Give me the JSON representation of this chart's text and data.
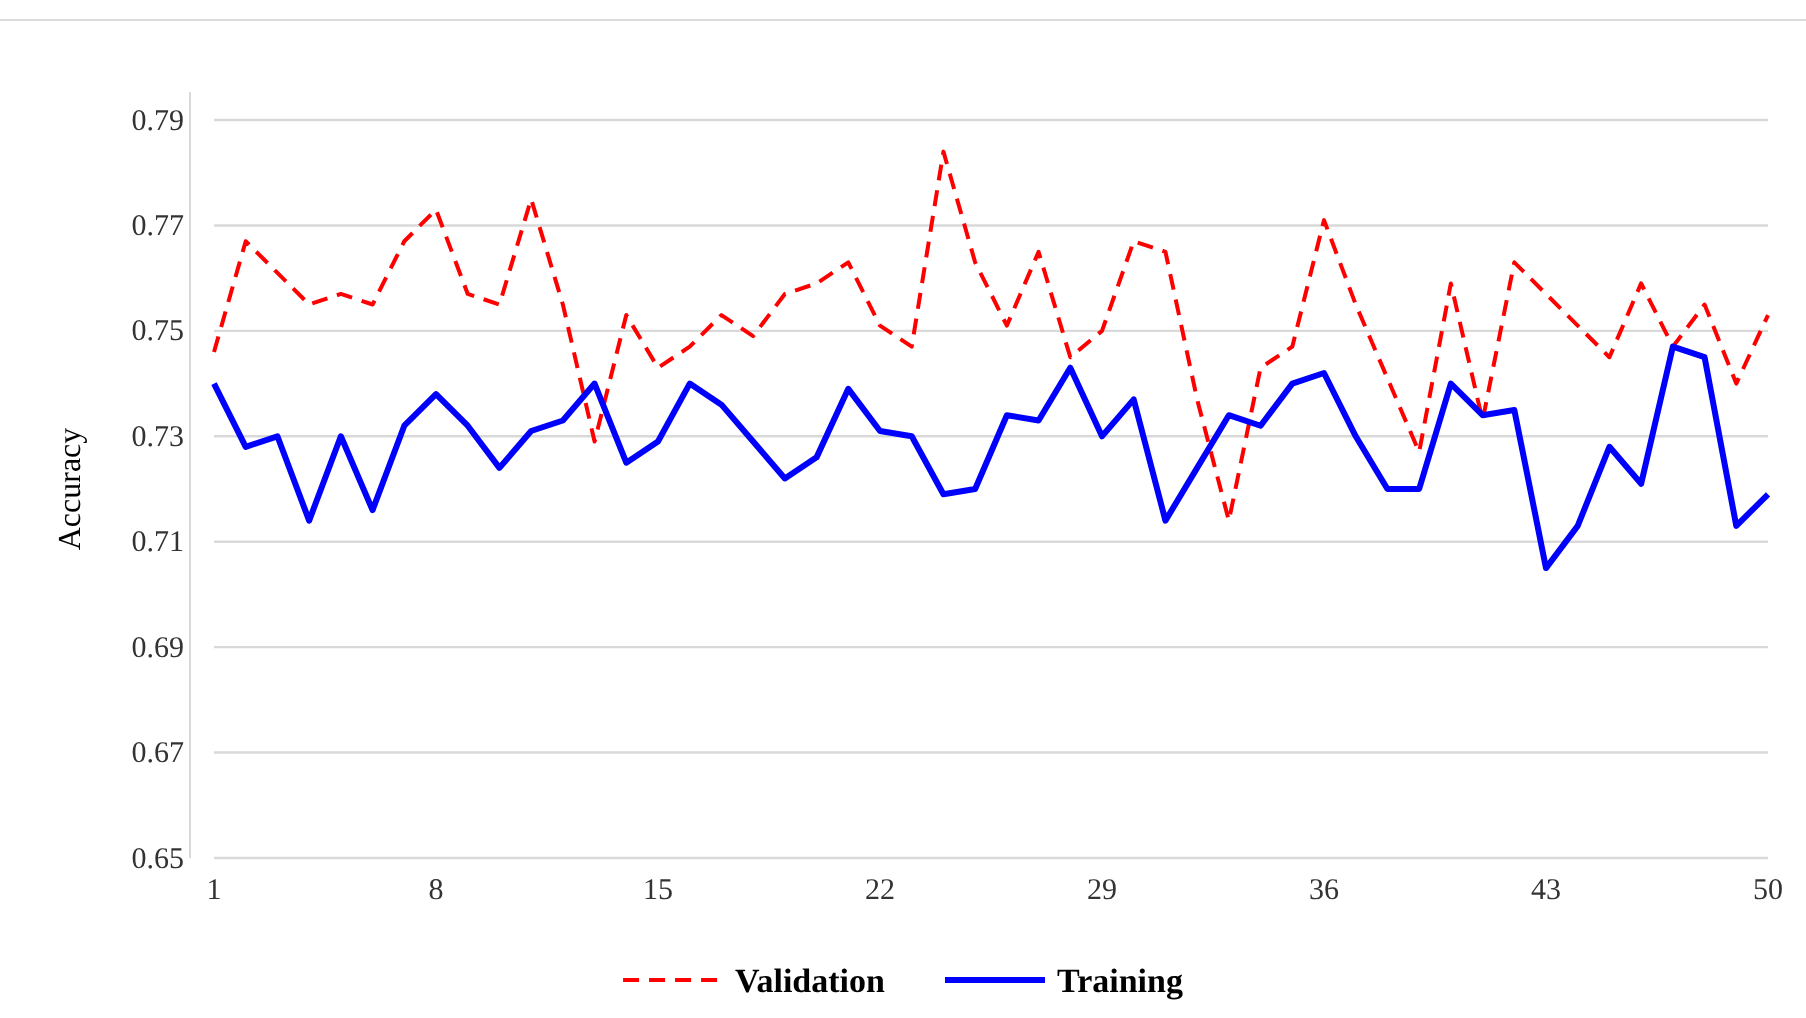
{
  "chart_data": {
    "type": "line",
    "ylabel": "Accuracy",
    "x": [
      1,
      2,
      3,
      4,
      5,
      6,
      7,
      8,
      9,
      10,
      11,
      12,
      13,
      14,
      15,
      16,
      17,
      18,
      19,
      20,
      21,
      22,
      23,
      24,
      25,
      26,
      27,
      28,
      29,
      30,
      31,
      32,
      33,
      34,
      35,
      36,
      37,
      38,
      39,
      40,
      41,
      42,
      43,
      44,
      45,
      46,
      47,
      48,
      49,
      50
    ],
    "xlim": [
      1,
      50
    ],
    "xticks": [
      1,
      8,
      15,
      22,
      29,
      36,
      43,
      50
    ],
    "ylim": [
      0.65,
      0.79
    ],
    "yticks": [
      0.65,
      0.67,
      0.69,
      0.71,
      0.73,
      0.75,
      0.77,
      0.79
    ],
    "grid": "y",
    "legend": "bottom",
    "series": [
      {
        "name": "Validation",
        "color": "#ff0000",
        "line_style": "dashed",
        "values": [
          0.746,
          0.767,
          0.761,
          0.755,
          0.757,
          0.755,
          0.767,
          0.773,
          0.757,
          0.755,
          0.775,
          0.755,
          0.729,
          0.753,
          0.743,
          0.747,
          0.753,
          0.749,
          0.757,
          0.759,
          0.763,
          0.751,
          0.747,
          0.784,
          0.763,
          0.751,
          0.765,
          0.745,
          0.75,
          0.767,
          0.765,
          0.737,
          0.714,
          0.743,
          0.747,
          0.771,
          0.755,
          0.741,
          0.727,
          0.759,
          0.733,
          0.763,
          0.757,
          0.751,
          0.745,
          0.759,
          0.747,
          0.755,
          0.74,
          0.753
        ]
      },
      {
        "name": "Training",
        "color": "#0000ff",
        "line_style": "solid",
        "values": [
          0.74,
          0.728,
          0.73,
          0.714,
          0.73,
          0.716,
          0.732,
          0.738,
          0.732,
          0.724,
          0.731,
          0.733,
          0.74,
          0.725,
          0.729,
          0.74,
          0.736,
          0.729,
          0.722,
          0.726,
          0.739,
          0.731,
          0.73,
          0.719,
          0.72,
          0.734,
          0.733,
          0.743,
          0.73,
          0.737,
          0.714,
          0.724,
          0.734,
          0.732,
          0.74,
          0.742,
          0.73,
          0.72,
          0.72,
          0.74,
          0.734,
          0.735,
          0.705,
          0.713,
          0.728,
          0.721,
          0.747,
          0.745,
          0.713,
          0.719
        ]
      }
    ]
  }
}
